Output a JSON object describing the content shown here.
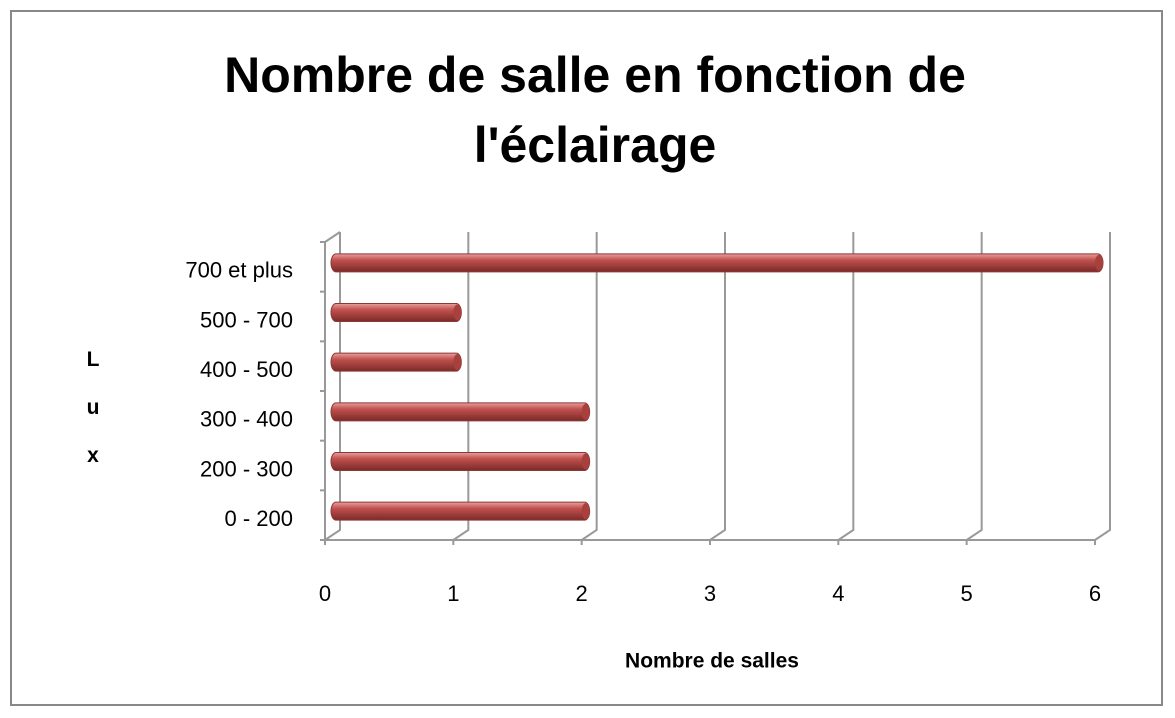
{
  "chart_data": {
    "type": "bar",
    "orientation": "horizontal",
    "title": "Nombre de salle en fonction de l'éclairage",
    "x_label": "Nombre de salles",
    "y_label": "Lux",
    "categories": [
      "0 - 200",
      "200 - 300",
      "300 - 400",
      "400 - 500",
      "500 - 700",
      "700 et plus"
    ],
    "values": [
      2,
      2,
      2,
      1,
      1,
      6
    ],
    "color": "#c0504d",
    "xlim": [
      0,
      6
    ],
    "xticks": [
      0,
      1,
      2,
      3,
      4,
      5,
      6
    ],
    "grid": true
  }
}
